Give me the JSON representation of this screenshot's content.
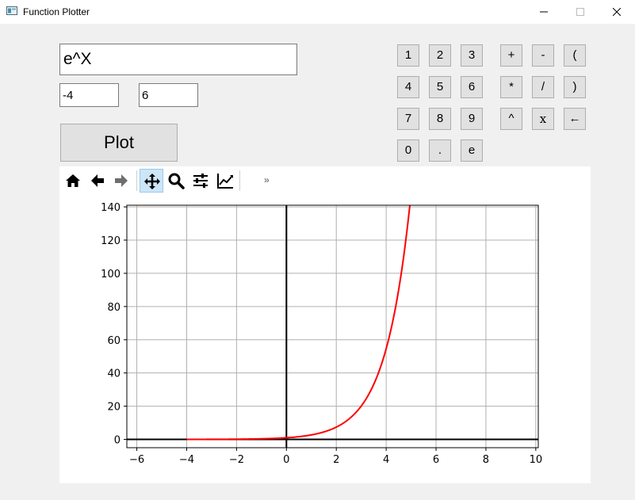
{
  "window": {
    "title": "Function Plotter",
    "icons": {
      "app": "window-app-icon",
      "minimize": "minimize-icon",
      "maximize": "maximize-icon",
      "close": "close-icon"
    }
  },
  "inputs": {
    "expression": "e^X",
    "min": "-4",
    "max": "6"
  },
  "plot_button": "Plot",
  "keypad": [
    "1",
    "2",
    "3",
    "+",
    "-",
    "(",
    "4",
    "5",
    "6",
    "*",
    "/",
    ")",
    "7",
    "8",
    "9",
    "^",
    "x",
    "←",
    "0",
    ".",
    "e"
  ],
  "toolbar": {
    "tools": [
      "home-icon",
      "back-arrow-icon",
      "forward-arrow-icon",
      "pan-move-icon",
      "zoom-magnifier-icon",
      "configure-subplots-icon",
      "edit-axis-icon"
    ],
    "active_tool": "pan-move-icon",
    "more": "»"
  },
  "colors": {
    "curve": "#ff0000",
    "grid": "#b0b0b0",
    "active_tool_bg": "#cde6f7"
  },
  "chart_data": {
    "type": "line",
    "title": "",
    "xlabel": "",
    "ylabel": "",
    "function": "e^X",
    "xlim": [
      -6.4,
      10.1
    ],
    "ylim": [
      -5,
      141
    ],
    "xticks": [
      -6,
      -4,
      -2,
      0,
      2,
      4,
      6,
      8,
      10
    ],
    "yticks": [
      0,
      20,
      40,
      60,
      80,
      100,
      120,
      140
    ],
    "grid": true,
    "x_range": [
      -4,
      6
    ],
    "series": [
      {
        "color": "#ff0000",
        "x": [
          -4,
          -3,
          -2,
          -1,
          0,
          0.5,
          1,
          1.5,
          2,
          2.5,
          3,
          3.25,
          3.5,
          3.75,
          4,
          4.25,
          4.5,
          4.75,
          4.95
        ],
        "y": [
          0.018,
          0.05,
          0.135,
          0.368,
          1.0,
          1.65,
          2.72,
          4.48,
          7.39,
          12.18,
          20.09,
          25.79,
          33.12,
          42.52,
          54.6,
          70.11,
          90.02,
          115.58,
          141.17
        ]
      }
    ]
  }
}
